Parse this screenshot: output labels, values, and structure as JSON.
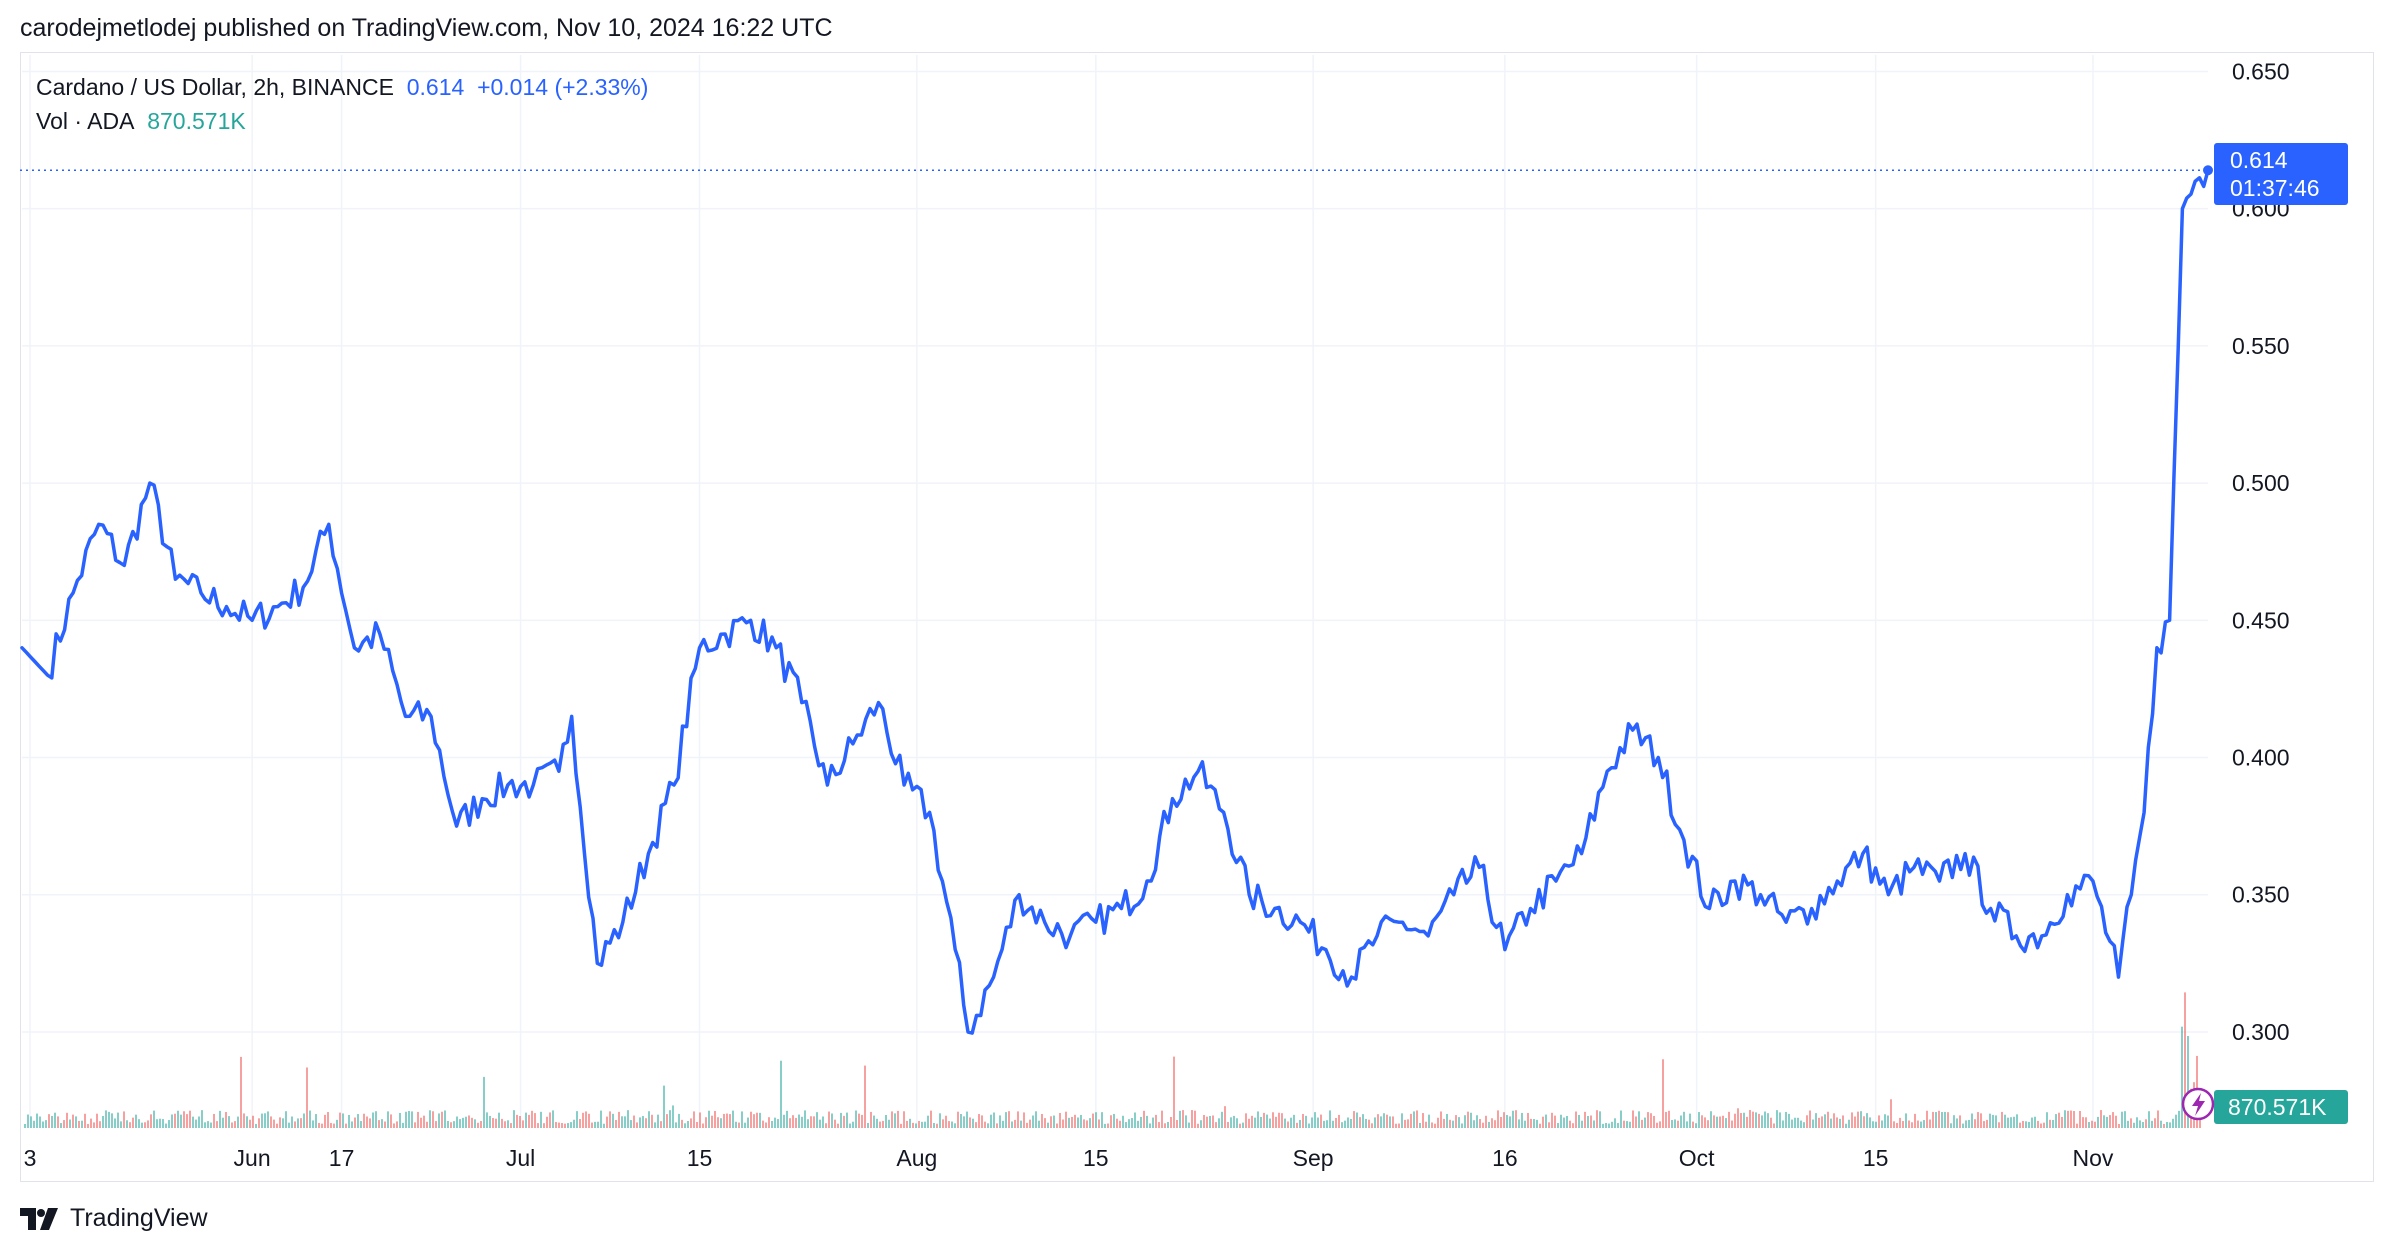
{
  "header": {
    "published_line": "carodejmetlodej published on TradingView.com, Nov 10, 2024 16:22 UTC"
  },
  "legend": {
    "symbol": "Cardano / US Dollar, 2h, BINANCE",
    "last_price": "0.614",
    "change": "+0.014 (+2.33%)",
    "volume_label": "Vol · ADA",
    "volume_value": "870.571K"
  },
  "badges": {
    "price": "0.614",
    "countdown": "01:37:46",
    "volume": "870.571K"
  },
  "footer": {
    "brand": "TradingView"
  },
  "colors": {
    "line": "#2962ff",
    "volume_up": "#26a69a",
    "volume_down": "#ef5350",
    "grid": "#f0f3fa"
  },
  "chart_data": {
    "type": "line",
    "title": "Cardano / US Dollar, 2h, BINANCE",
    "series": [
      {
        "name": "Cardano / US Dollar",
        "x": [
          "May 23",
          "May 25",
          "May 27",
          "May 29",
          "May 31",
          "Jun 2",
          "Jun 4",
          "Jun 6",
          "Jun 8",
          "Jun 10",
          "Jun 12",
          "Jun 14",
          "Jun 16",
          "Jun 18",
          "Jun 20",
          "Jun 22",
          "Jun 24",
          "Jun 26",
          "Jun 28",
          "Jun 30",
          "Jul 2",
          "Jul 4",
          "Jul 5",
          "Jul 7",
          "Jul 9",
          "Jul 11",
          "Jul 13",
          "Jul 15",
          "Jul 17",
          "Jul 19",
          "Jul 21",
          "Jul 23",
          "Jul 25",
          "Jul 27",
          "Jul 29",
          "Jul 31",
          "Aug 2",
          "Aug 4",
          "Aug 5",
          "Aug 7",
          "Aug 9",
          "Aug 11",
          "Aug 13",
          "Aug 15",
          "Aug 17",
          "Aug 19",
          "Aug 21",
          "Aug 23",
          "Aug 25",
          "Aug 27",
          "Aug 29",
          "Aug 31",
          "Sep 2",
          "Sep 4",
          "Sep 6",
          "Sep 8",
          "Sep 10",
          "Sep 12",
          "Sep 14",
          "Sep 16",
          "Sep 18",
          "Sep 20",
          "Sep 22",
          "Sep 24",
          "Sep 26",
          "Sep 28",
          "Sep 30",
          "Oct 2",
          "Oct 4",
          "Oct 6",
          "Oct 8",
          "Oct 10",
          "Oct 12",
          "Oct 14",
          "Oct 16",
          "Oct 18",
          "Oct 20",
          "Oct 22",
          "Oct 24",
          "Oct 26",
          "Oct 28",
          "Oct 30",
          "Nov 1",
          "Nov 3",
          "Nov 4",
          "Nov 5",
          "Nov 6",
          "Nov 7",
          "Nov 8",
          "Nov 9",
          "Nov 10"
        ],
        "y": [
          0.44,
          0.43,
          0.46,
          0.485,
          0.47,
          0.5,
          0.465,
          0.46,
          0.455,
          0.45,
          0.455,
          0.462,
          0.485,
          0.44,
          0.445,
          0.415,
          0.415,
          0.375,
          0.385,
          0.39,
          0.39,
          0.395,
          0.415,
          0.325,
          0.34,
          0.365,
          0.39,
          0.44,
          0.445,
          0.45,
          0.44,
          0.42,
          0.39,
          0.405,
          0.42,
          0.39,
          0.38,
          0.33,
          0.3,
          0.32,
          0.35,
          0.34,
          0.335,
          0.34,
          0.345,
          0.355,
          0.385,
          0.395,
          0.38,
          0.35,
          0.345,
          0.34,
          0.33,
          0.32,
          0.335,
          0.34,
          0.335,
          0.35,
          0.36,
          0.33,
          0.345,
          0.355,
          0.365,
          0.395,
          0.41,
          0.4,
          0.37,
          0.345,
          0.355,
          0.35,
          0.34,
          0.345,
          0.355,
          0.365,
          0.35,
          0.36,
          0.355,
          0.365,
          0.345,
          0.335,
          0.335,
          0.35,
          0.355,
          0.32,
          0.35,
          0.38,
          0.44,
          0.45,
          0.6,
          0.61,
          0.614
        ]
      }
    ],
    "volume_series": {
      "name": "Vol · ADA",
      "latest": "870.571K"
    },
    "y_ticks": [
      "0.650",
      "0.600",
      "0.550",
      "0.500",
      "0.450",
      "0.400",
      "0.350",
      "0.300"
    ],
    "x_ticks": [
      "3",
      "Jun",
      "17",
      "Jul",
      "15",
      "Aug",
      "15",
      "Sep",
      "16",
      "Oct",
      "15",
      "Nov"
    ],
    "ylim": [
      0.265,
      0.656
    ],
    "y_axis_side": "right",
    "grid": true,
    "xlabel": "",
    "ylabel": ""
  }
}
